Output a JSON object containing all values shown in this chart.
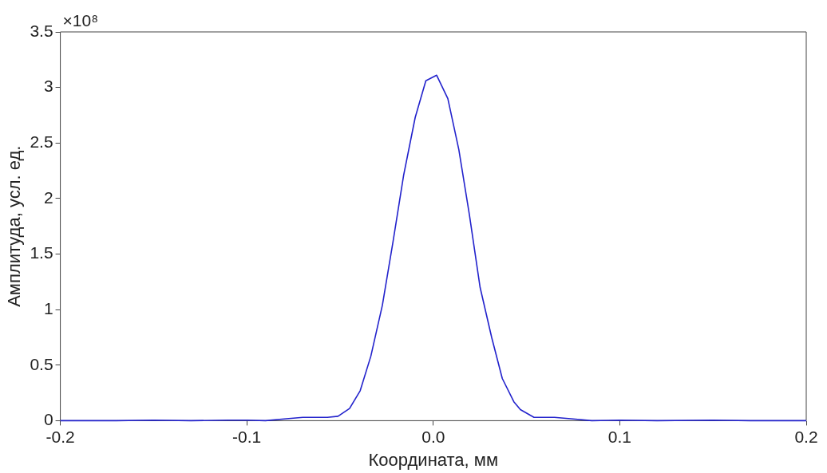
{
  "chart_data": {
    "type": "line",
    "xlabel": "Координата, мм",
    "ylabel": "Амплитуда, усл. ед.",
    "annotations": [
      "×10⁸"
    ],
    "xlim": [
      -0.2,
      0.2
    ],
    "xticks": [
      -0.2,
      -0.1,
      {
        "value": 0,
        "label": "0.0"
      },
      0.1,
      0.2
    ],
    "ylim": [
      0,
      3.5
    ],
    "yticks": [
      0,
      0.5,
      1,
      1.5,
      2,
      2.5,
      3,
      3.5
    ],
    "grid": false,
    "legend": false,
    "marker": "none",
    "line_style": "solid",
    "series": [
      {
        "color": "#2222cc",
        "x": [
          -0.2,
          -0.17,
          -0.15,
          -0.13,
          -0.11,
          -0.1,
          -0.09,
          -0.08,
          -0.07,
          -0.062,
          -0.0568,
          -0.0511,
          -0.0449,
          -0.0392,
          -0.0335,
          -0.0273,
          -0.0216,
          -0.0159,
          -0.0097,
          -0.004,
          0.0018,
          0.0078,
          0.0137,
          0.0194,
          0.0251,
          0.0313,
          0.037,
          0.0432,
          0.0467,
          0.054,
          0.065,
          0.075,
          0.085,
          0.1,
          0.12,
          0.15,
          0.17,
          0.2
        ],
        "values": [
          0,
          0,
          0.005,
          0,
          0.005,
          0.005,
          0,
          0.015,
          0.03,
          0.03,
          0.03,
          0.04,
          0.11,
          0.27,
          0.58,
          1.04,
          1.61,
          2.21,
          2.73,
          3.06,
          3.11,
          2.9,
          2.44,
          1.85,
          1.2,
          0.75,
          0.38,
          0.17,
          0.1,
          0.03,
          0.03,
          0.015,
          0,
          0.005,
          0,
          0.005,
          0,
          0
        ]
      }
    ]
  }
}
